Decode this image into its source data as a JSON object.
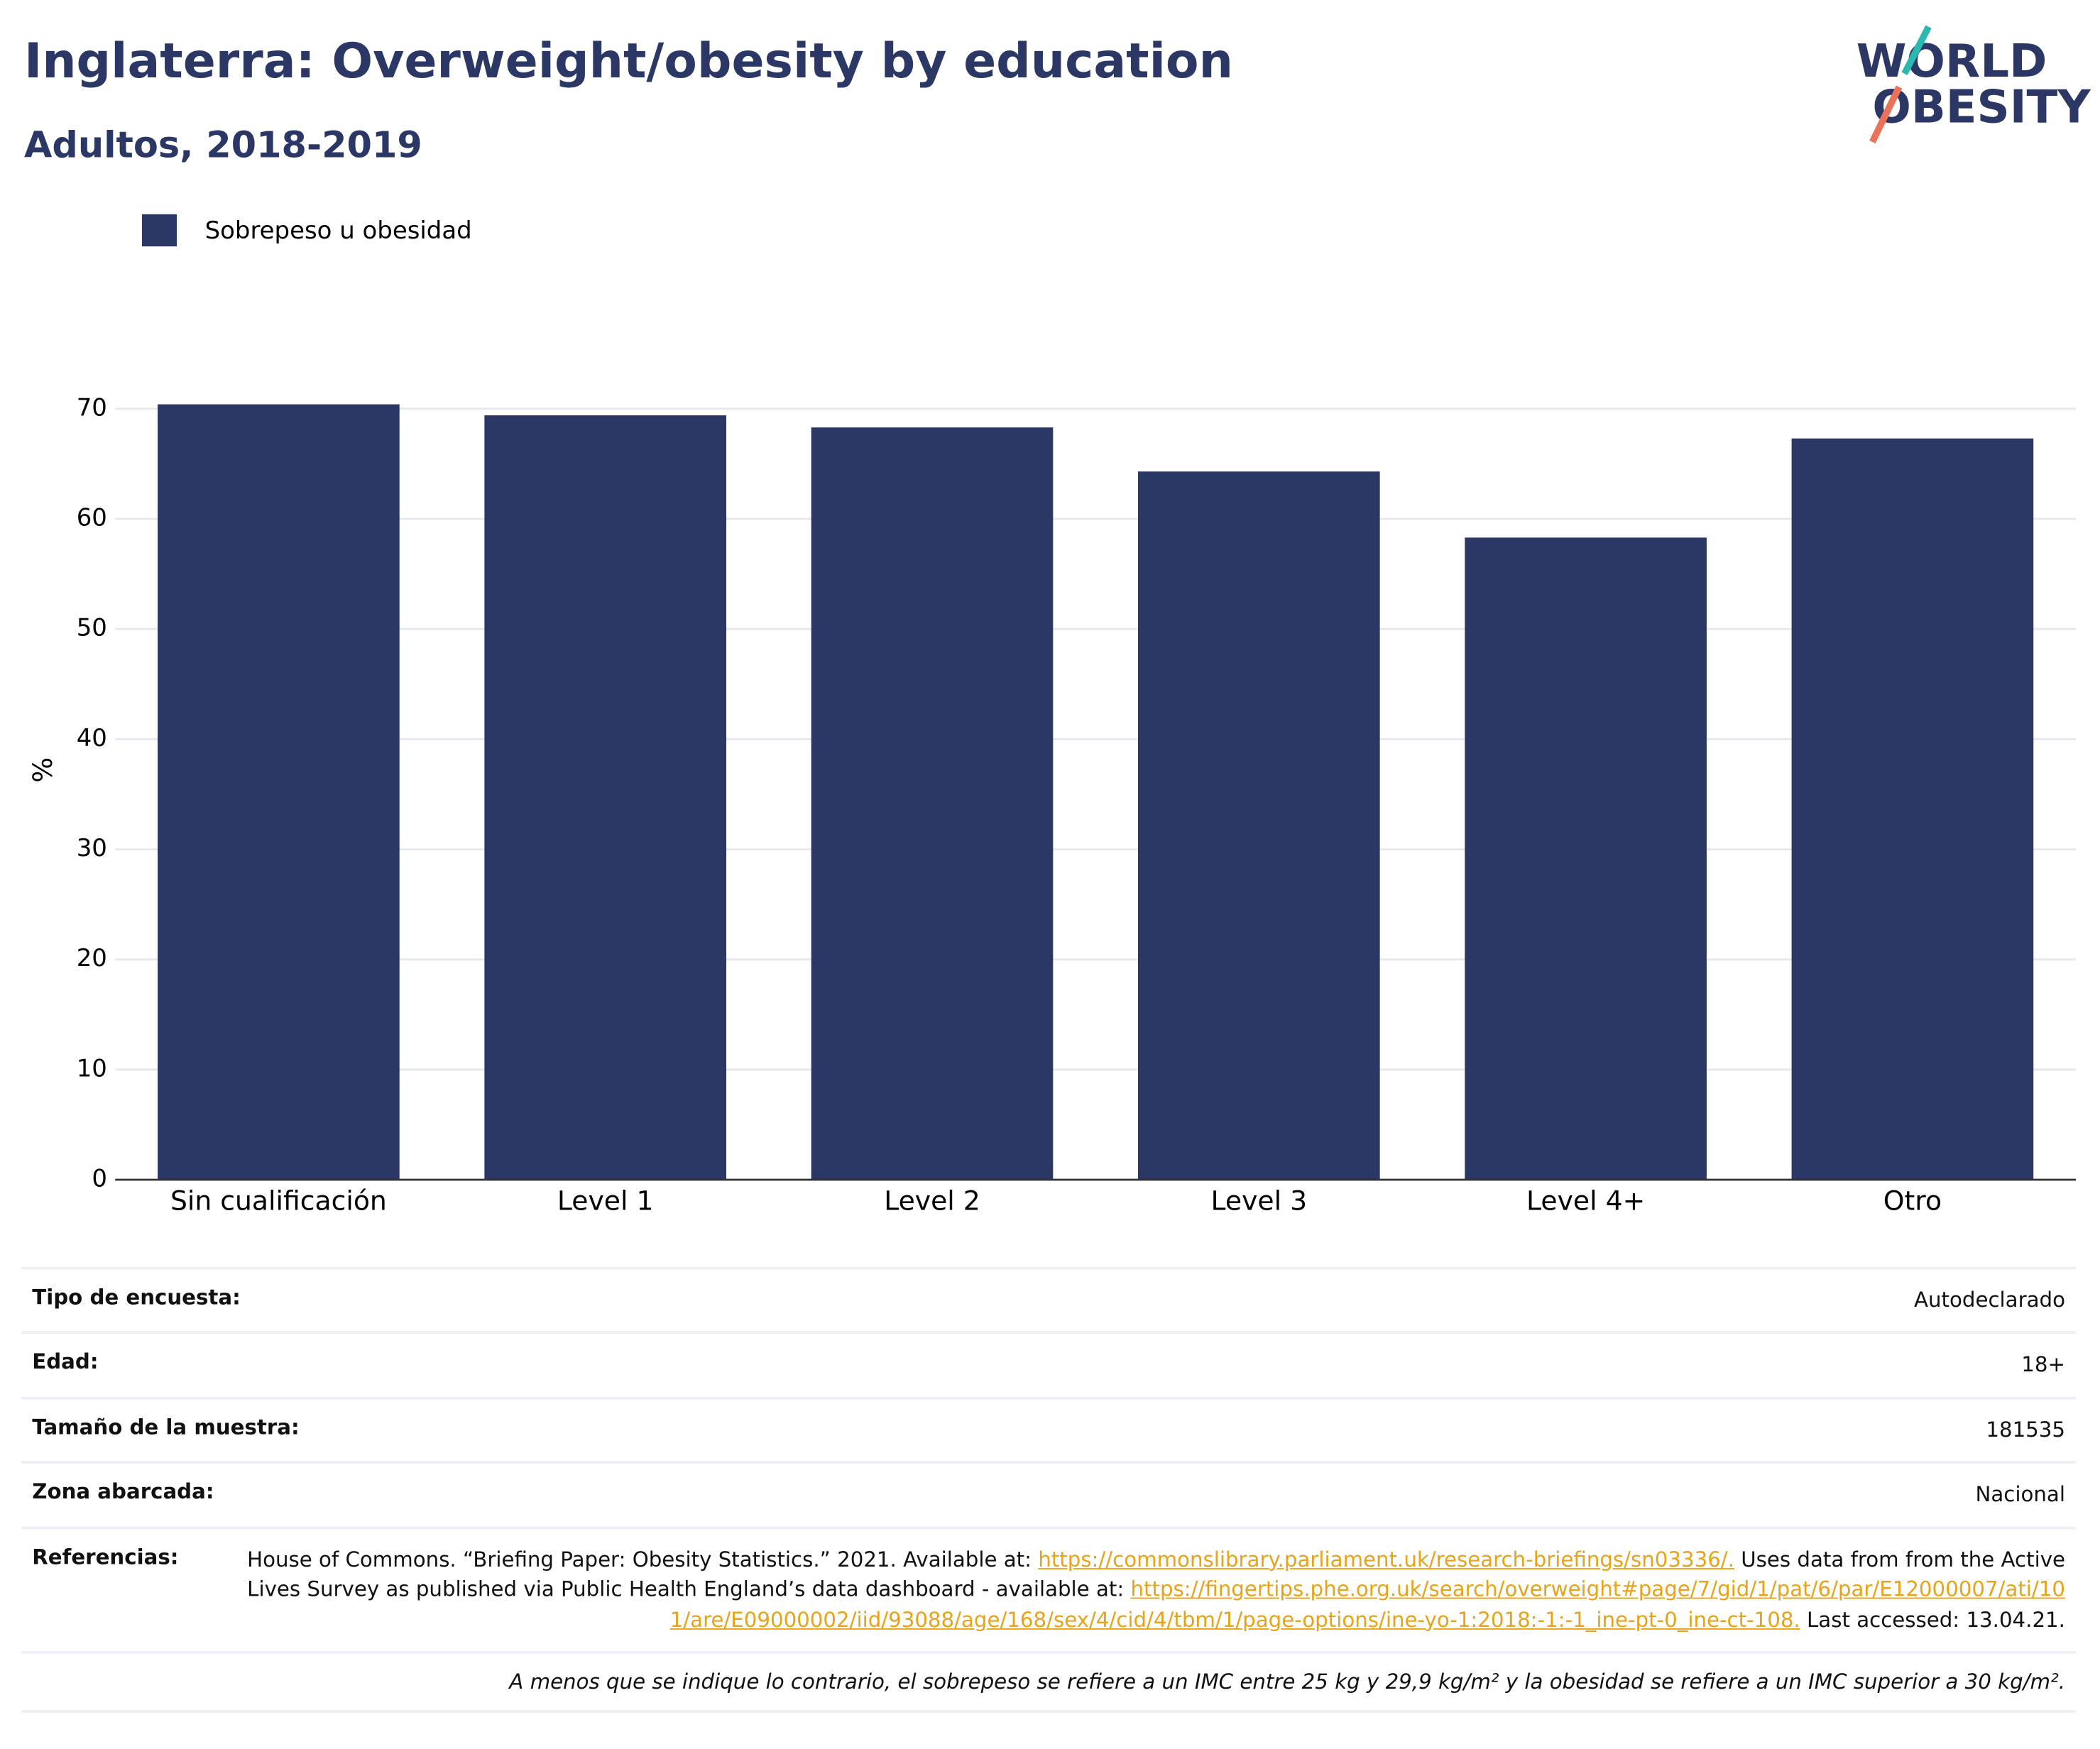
{
  "chart_data": {
    "type": "bar",
    "title": "Inglaterra: Overweight/obesity by education",
    "subtitle": "Adultos, 2018-2019",
    "y_label": "%",
    "categories": [
      "Sin cualificación",
      "Level 1",
      "Level 2",
      "Level 3",
      "Level 4+",
      "Otro"
    ],
    "series": [
      {
        "name": "Sobrepeso u obesidad",
        "color": "#2b3764",
        "values": [
          70.4,
          69.4,
          68.3,
          64.3,
          58.3,
          67.3
        ]
      }
    ],
    "ylim": [
      0,
      71
    ],
    "yticks": [
      0,
      10,
      20,
      30,
      40,
      50,
      60,
      70
    ],
    "grid": true,
    "legend": "top-left"
  },
  "logo": {
    "line1": "WORLD",
    "line2": "OBESITY"
  },
  "table": {
    "rows": [
      [
        "Tipo de encuesta:",
        "Autodeclarado"
      ],
      [
        "Edad:",
        "18+"
      ],
      [
        "Tamaño de la muestra:",
        "181535"
      ],
      [
        "Zona abarcada:",
        "Nacional"
      ]
    ],
    "references_label": "Referencias:",
    "references": [
      "House of Commons. “Briefing Paper: Obesity Statistics.” 2021. Available at: ",
      "https://commonslibrary.parliament.uk/research-briefings/sn03336/.",
      " Uses data from from the Active Lives Survey as published via Public Health England’s data dashboard - available at: ",
      "https://fingertips.phe.org.uk/search/overweight#page/7/gid/1/pat/6/par/E12000007/ati/101/are/E09000002/iid/93088/age/168/sex/4/cid/4/tbm/1/page-options/ine-yo-1:2018:-1:-1_ine-pt-0_ine-ct-108.",
      " Last accessed: 13.04.21."
    ],
    "footnote": "A menos que se indique lo contrario, el sobrepeso se refiere a un IMC entre 25 kg y 29,9 kg/m² y la obesidad se refiere a un IMC superior a 30 kg/m²."
  }
}
